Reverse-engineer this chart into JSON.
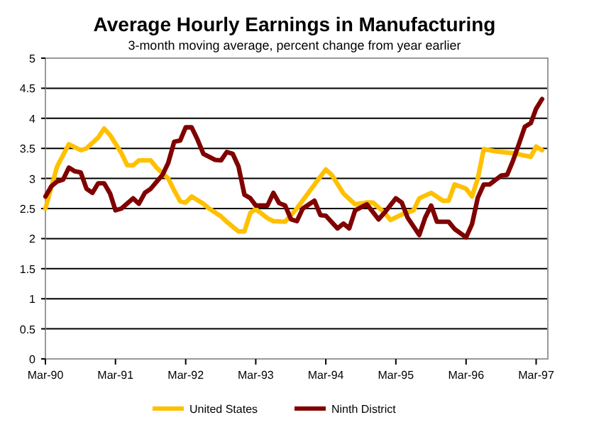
{
  "chart_data": {
    "type": "line",
    "title": "Average Hourly Earnings in Manufacturing",
    "subtitle": "3-month moving average, percent change from year earlier",
    "xlim": [
      "1990-03",
      "1997-05"
    ],
    "xticks": [
      {
        "value": "1990-03",
        "label": "Mar-90"
      },
      {
        "value": "1991-03",
        "label": "Mar-91"
      },
      {
        "value": "1992-03",
        "label": "Mar-92"
      },
      {
        "value": "1993-03",
        "label": "Mar-93"
      },
      {
        "value": "1994-03",
        "label": "Mar-94"
      },
      {
        "value": "1995-03",
        "label": "Mar-95"
      },
      {
        "value": "1996-03",
        "label": "Mar-96"
      },
      {
        "value": "1997-03",
        "label": "Mar-97"
      }
    ],
    "ylim": [
      0,
      5
    ],
    "yticks": [
      0,
      0.5,
      1,
      1.5,
      2,
      2.5,
      3,
      3.5,
      4,
      4.5,
      5
    ],
    "grid": "y",
    "legend": "bottom",
    "line_style": "solid",
    "marker": "none",
    "series": [
      {
        "name": "United States",
        "color": "#ffc000",
        "x": [
          "1990-03",
          "1990-05",
          "1990-07",
          "1990-09",
          "1990-10",
          "1990-12",
          "1991-01",
          "1991-02",
          "1991-04",
          "1991-05",
          "1991-06",
          "1991-07",
          "1991-09",
          "1991-10",
          "1991-12",
          "1992-01",
          "1992-02",
          "1992-03",
          "1992-04",
          "1992-06",
          "1992-07",
          "1992-09",
          "1992-10",
          "1992-12",
          "1993-01",
          "1993-02",
          "1993-03",
          "1993-05",
          "1993-06",
          "1993-08",
          "1993-10",
          "1994-01",
          "1994-03",
          "1994-04",
          "1994-06",
          "1994-08",
          "1994-10",
          "1994-11",
          "1995-01",
          "1995-02",
          "1995-04",
          "1995-06",
          "1995-07",
          "1995-09",
          "1995-11",
          "1995-12",
          "1996-01",
          "1996-03",
          "1996-04",
          "1996-05",
          "1996-06",
          "1996-08",
          "1996-11",
          "1997-01",
          "1997-02",
          "1997-03",
          "1997-04"
        ],
        "values": [
          2.5,
          3.2,
          3.57,
          3.47,
          3.5,
          3.68,
          3.83,
          3.72,
          3.42,
          3.22,
          3.22,
          3.3,
          3.3,
          3.18,
          3.0,
          2.8,
          2.62,
          2.6,
          2.7,
          2.58,
          2.5,
          2.37,
          2.28,
          2.12,
          2.12,
          2.43,
          2.49,
          2.34,
          2.29,
          2.28,
          2.5,
          2.9,
          3.15,
          3.06,
          2.75,
          2.57,
          2.6,
          2.6,
          2.43,
          2.31,
          2.4,
          2.47,
          2.67,
          2.76,
          2.63,
          2.63,
          2.9,
          2.83,
          2.7,
          3.0,
          3.49,
          3.45,
          3.42,
          3.38,
          3.36,
          3.53,
          3.47
        ]
      },
      {
        "name": "Ninth District",
        "color": "#800000",
        "x": [
          "1990-03",
          "1990-04",
          "1990-05",
          "1990-06",
          "1990-07",
          "1990-08",
          "1990-09",
          "1990-10",
          "1990-11",
          "1990-12",
          "1991-01",
          "1991-02",
          "1991-03",
          "1991-04",
          "1991-06",
          "1991-07",
          "1991-08",
          "1991-09",
          "1991-11",
          "1991-12",
          "1992-01",
          "1992-02",
          "1992-03",
          "1992-04",
          "1992-05",
          "1992-06",
          "1992-08",
          "1992-09",
          "1992-10",
          "1992-11",
          "1992-12",
          "1993-01",
          "1993-02",
          "1993-03",
          "1993-05",
          "1993-06",
          "1993-07",
          "1993-08",
          "1993-09",
          "1993-10",
          "1993-11",
          "1994-01",
          "1994-02",
          "1994-03",
          "1994-05",
          "1994-06",
          "1994-07",
          "1994-08",
          "1994-10",
          "1994-12",
          "1995-01",
          "1995-03",
          "1995-04",
          "1995-05",
          "1995-07",
          "1995-08",
          "1995-09",
          "1995-10",
          "1995-12",
          "1996-01",
          "1996-03",
          "1996-04",
          "1996-05",
          "1996-06",
          "1996-07",
          "1996-09",
          "1996-10",
          "1996-11",
          "1996-12",
          "1997-01",
          "1997-02",
          "1997-03",
          "1997-04"
        ],
        "values": [
          2.7,
          2.87,
          2.95,
          2.98,
          3.18,
          3.12,
          3.1,
          2.83,
          2.76,
          2.92,
          2.92,
          2.75,
          2.47,
          2.5,
          2.67,
          2.58,
          2.76,
          2.83,
          3.06,
          3.26,
          3.61,
          3.63,
          3.85,
          3.85,
          3.65,
          3.41,
          3.31,
          3.3,
          3.44,
          3.41,
          3.2,
          2.73,
          2.67,
          2.55,
          2.55,
          2.76,
          2.59,
          2.55,
          2.32,
          2.29,
          2.5,
          2.63,
          2.39,
          2.38,
          2.17,
          2.25,
          2.17,
          2.47,
          2.57,
          2.32,
          2.43,
          2.67,
          2.6,
          2.35,
          2.06,
          2.35,
          2.55,
          2.28,
          2.28,
          2.16,
          2.02,
          2.24,
          2.68,
          2.9,
          2.9,
          3.05,
          3.06,
          3.3,
          3.57,
          3.86,
          3.92,
          4.16,
          4.32
        ]
      }
    ]
  }
}
